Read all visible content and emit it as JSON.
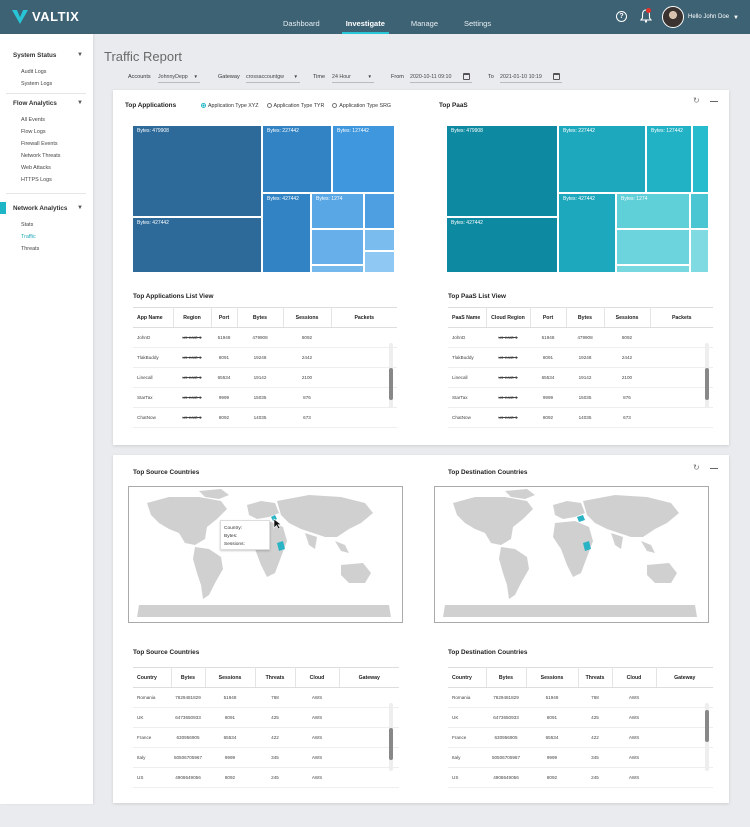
{
  "app": {
    "brand": "VALTIX"
  },
  "nav": {
    "items": [
      "Dashboard",
      "Investigate",
      "Manage",
      "Settings"
    ],
    "active": "Investigate"
  },
  "user": {
    "name": "Hello John Doe"
  },
  "sidebar": {
    "sections": [
      {
        "title": "System Status",
        "items": [
          "Audit Logs",
          "System Logs"
        ]
      },
      {
        "title": "Flow Analytics",
        "items": [
          "All Events",
          "Flow Logs",
          "Firewall Events",
          "Network Threats",
          "Web Attacks",
          "HTTPS Logs"
        ]
      },
      {
        "title": "Network Analytics",
        "items": [
          "Stats",
          "Traffic",
          "Threats"
        ]
      }
    ],
    "active_item": "Traffic"
  },
  "page": {
    "title": "Traffic Report"
  },
  "filters": {
    "accounts_label": "Accounts",
    "accounts_value": "JohnnyDepp",
    "gateway_label": "Gateway",
    "gateway_value": "crossaccountgw",
    "time_label": "Time",
    "time_value": "24 Hour",
    "from_label": "From",
    "from_value": "2020-10-11  09:10",
    "to_label": "To",
    "to_value": "2021-01-10  10:19"
  },
  "top_apps": {
    "title": "Top Applications",
    "radios": [
      "Application Type XYZ",
      "Application Type TYR",
      "Application Type SRG"
    ],
    "selected_radio": 0,
    "tiles": [
      "Bytes: 479908",
      "Bytes: 227442",
      "Bytes: 127442",
      "Bytes: 427442",
      "Bytes: 427442",
      "Bytes: 1274"
    ],
    "list_title": "Top Applications List View",
    "columns": [
      "App Name",
      "Region",
      "Port",
      "Bytes",
      "Sessions",
      "Packets"
    ],
    "rows": [
      [
        "JohnD",
        "us-east-1",
        "51948",
        "479908",
        "8092",
        ""
      ],
      [
        "TlakBuddy",
        "us-east-1",
        "8091",
        "19248",
        "2442",
        ""
      ],
      [
        "Linecall",
        "us-east-1",
        "65534",
        "19142",
        "2100",
        ""
      ],
      [
        "StarTax",
        "us-east-1",
        "9999",
        "15035",
        "876",
        ""
      ],
      [
        "ChatNow",
        "us-east-1",
        "8092",
        "14035",
        "673",
        ""
      ]
    ]
  },
  "top_paas": {
    "title": "Top PaaS",
    "tiles": [
      "Bytes: 479908",
      "Bytes: 227442",
      "Bytes: 127442",
      "Bytes: 427442",
      "Bytes: 427442",
      "Bytes: 1274"
    ],
    "list_title": "Top PaaS List View",
    "columns": [
      "PaaS Name",
      "Cloud Region",
      "Port",
      "Bytes",
      "Sessions",
      "Packets"
    ],
    "rows": [
      [
        "JohnD",
        "us-east-1",
        "51948",
        "479908",
        "8092",
        ""
      ],
      [
        "TlakBuddy",
        "us-east-1",
        "8091",
        "19248",
        "2442",
        ""
      ],
      [
        "Linecall",
        "us-east-1",
        "65534",
        "19142",
        "2100",
        ""
      ],
      [
        "StarTax",
        "us-east-1",
        "9999",
        "15035",
        "876",
        ""
      ],
      [
        "ChatNow",
        "us-east-1",
        "8092",
        "14035",
        "673",
        ""
      ]
    ]
  },
  "maps": {
    "source_title": "Top Source Countries",
    "dest_title": "Top Destination Countries",
    "tooltip": {
      "country": "Country:",
      "bytes": "Bytes:",
      "sessions": "Sessions:"
    },
    "land_color": "#d0d0d0",
    "highlight_color": "#2ab3c4"
  },
  "source_countries": {
    "list_title": "Top Source Countries",
    "columns": [
      "Country",
      "Bytes",
      "Sessions",
      "Threats",
      "Cloud",
      "Gateway"
    ],
    "rows": [
      [
        "Romania",
        "7629481829",
        "51948",
        "768",
        "AWS",
        ""
      ],
      [
        "UK",
        "6473650933",
        "8091",
        "425",
        "AWS",
        ""
      ],
      [
        "France",
        "630956905",
        "65534",
        "422",
        "AWS",
        ""
      ],
      [
        "Italy",
        "50506705967",
        "9999",
        "345",
        "AWS",
        ""
      ],
      [
        "US",
        "4908649056",
        "8092",
        "245",
        "AWS",
        ""
      ]
    ]
  },
  "dest_countries": {
    "list_title": "Top Destination Countries",
    "columns": [
      "Country",
      "Bytes",
      "Sessions",
      "Threats",
      "Cloud",
      "Gateway"
    ],
    "rows": [
      [
        "Romania",
        "7629481829",
        "51948",
        "768",
        "AWS",
        ""
      ],
      [
        "UK",
        "6473650933",
        "8091",
        "425",
        "AWS",
        ""
      ],
      [
        "France",
        "630956905",
        "65534",
        "422",
        "AWS",
        ""
      ],
      [
        "Italy",
        "50506705967",
        "9999",
        "345",
        "AWS",
        ""
      ],
      [
        "US",
        "4908649056",
        "8092",
        "245",
        "AWS",
        ""
      ]
    ]
  },
  "colors": {
    "nav_bg": "#3d6274",
    "accent": "#1fb5c6",
    "apps_dark": "#2d6a9a",
    "apps_mid": "#3f8fd0",
    "paas_dark": "#0d8aa1",
    "paas_light": "#5fcfd8"
  }
}
